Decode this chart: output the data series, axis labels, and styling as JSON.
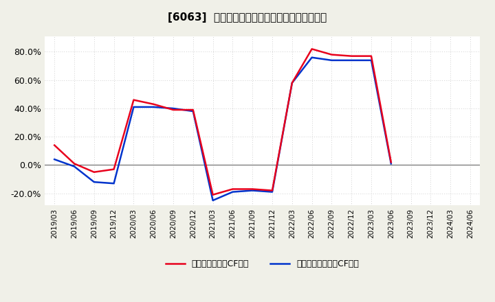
{
  "title": "[6063]  有利子負債キャッシュフロー比率の推移",
  "x_labels": [
    "2019/03",
    "2019/06",
    "2019/09",
    "2019/12",
    "2020/03",
    "2020/06",
    "2020/09",
    "2020/12",
    "2021/03",
    "2021/06",
    "2021/09",
    "2021/12",
    "2022/03",
    "2022/06",
    "2022/09",
    "2022/12",
    "2023/03",
    "2023/06",
    "2023/09",
    "2023/12",
    "2024/03",
    "2024/06"
  ],
  "operating_cf": [
    0.14,
    0.01,
    -0.05,
    -0.03,
    0.46,
    0.43,
    0.39,
    0.39,
    -0.21,
    -0.17,
    -0.17,
    -0.18,
    0.58,
    0.82,
    0.78,
    0.77,
    0.77,
    0.02,
    null,
    null,
    null,
    null
  ],
  "free_cf": [
    0.04,
    -0.01,
    -0.12,
    -0.13,
    0.41,
    0.41,
    0.4,
    0.38,
    -0.25,
    -0.19,
    -0.18,
    -0.19,
    0.58,
    0.76,
    0.74,
    0.74,
    0.74,
    0.01,
    null,
    null,
    null,
    null
  ],
  "operating_color": "#e8001c",
  "free_color": "#0033cc",
  "background_color": "#f0f0e8",
  "plot_bg_color": "#ffffff",
  "grid_color": "#aaaaaa",
  "ylim": [
    -0.285,
    0.91
  ],
  "yticks": [
    -0.2,
    0.0,
    0.2,
    0.4,
    0.6,
    0.8
  ],
  "legend_op": "有利子負債営業CF比率",
  "legend_free": "有利子負債フリーCF比率"
}
